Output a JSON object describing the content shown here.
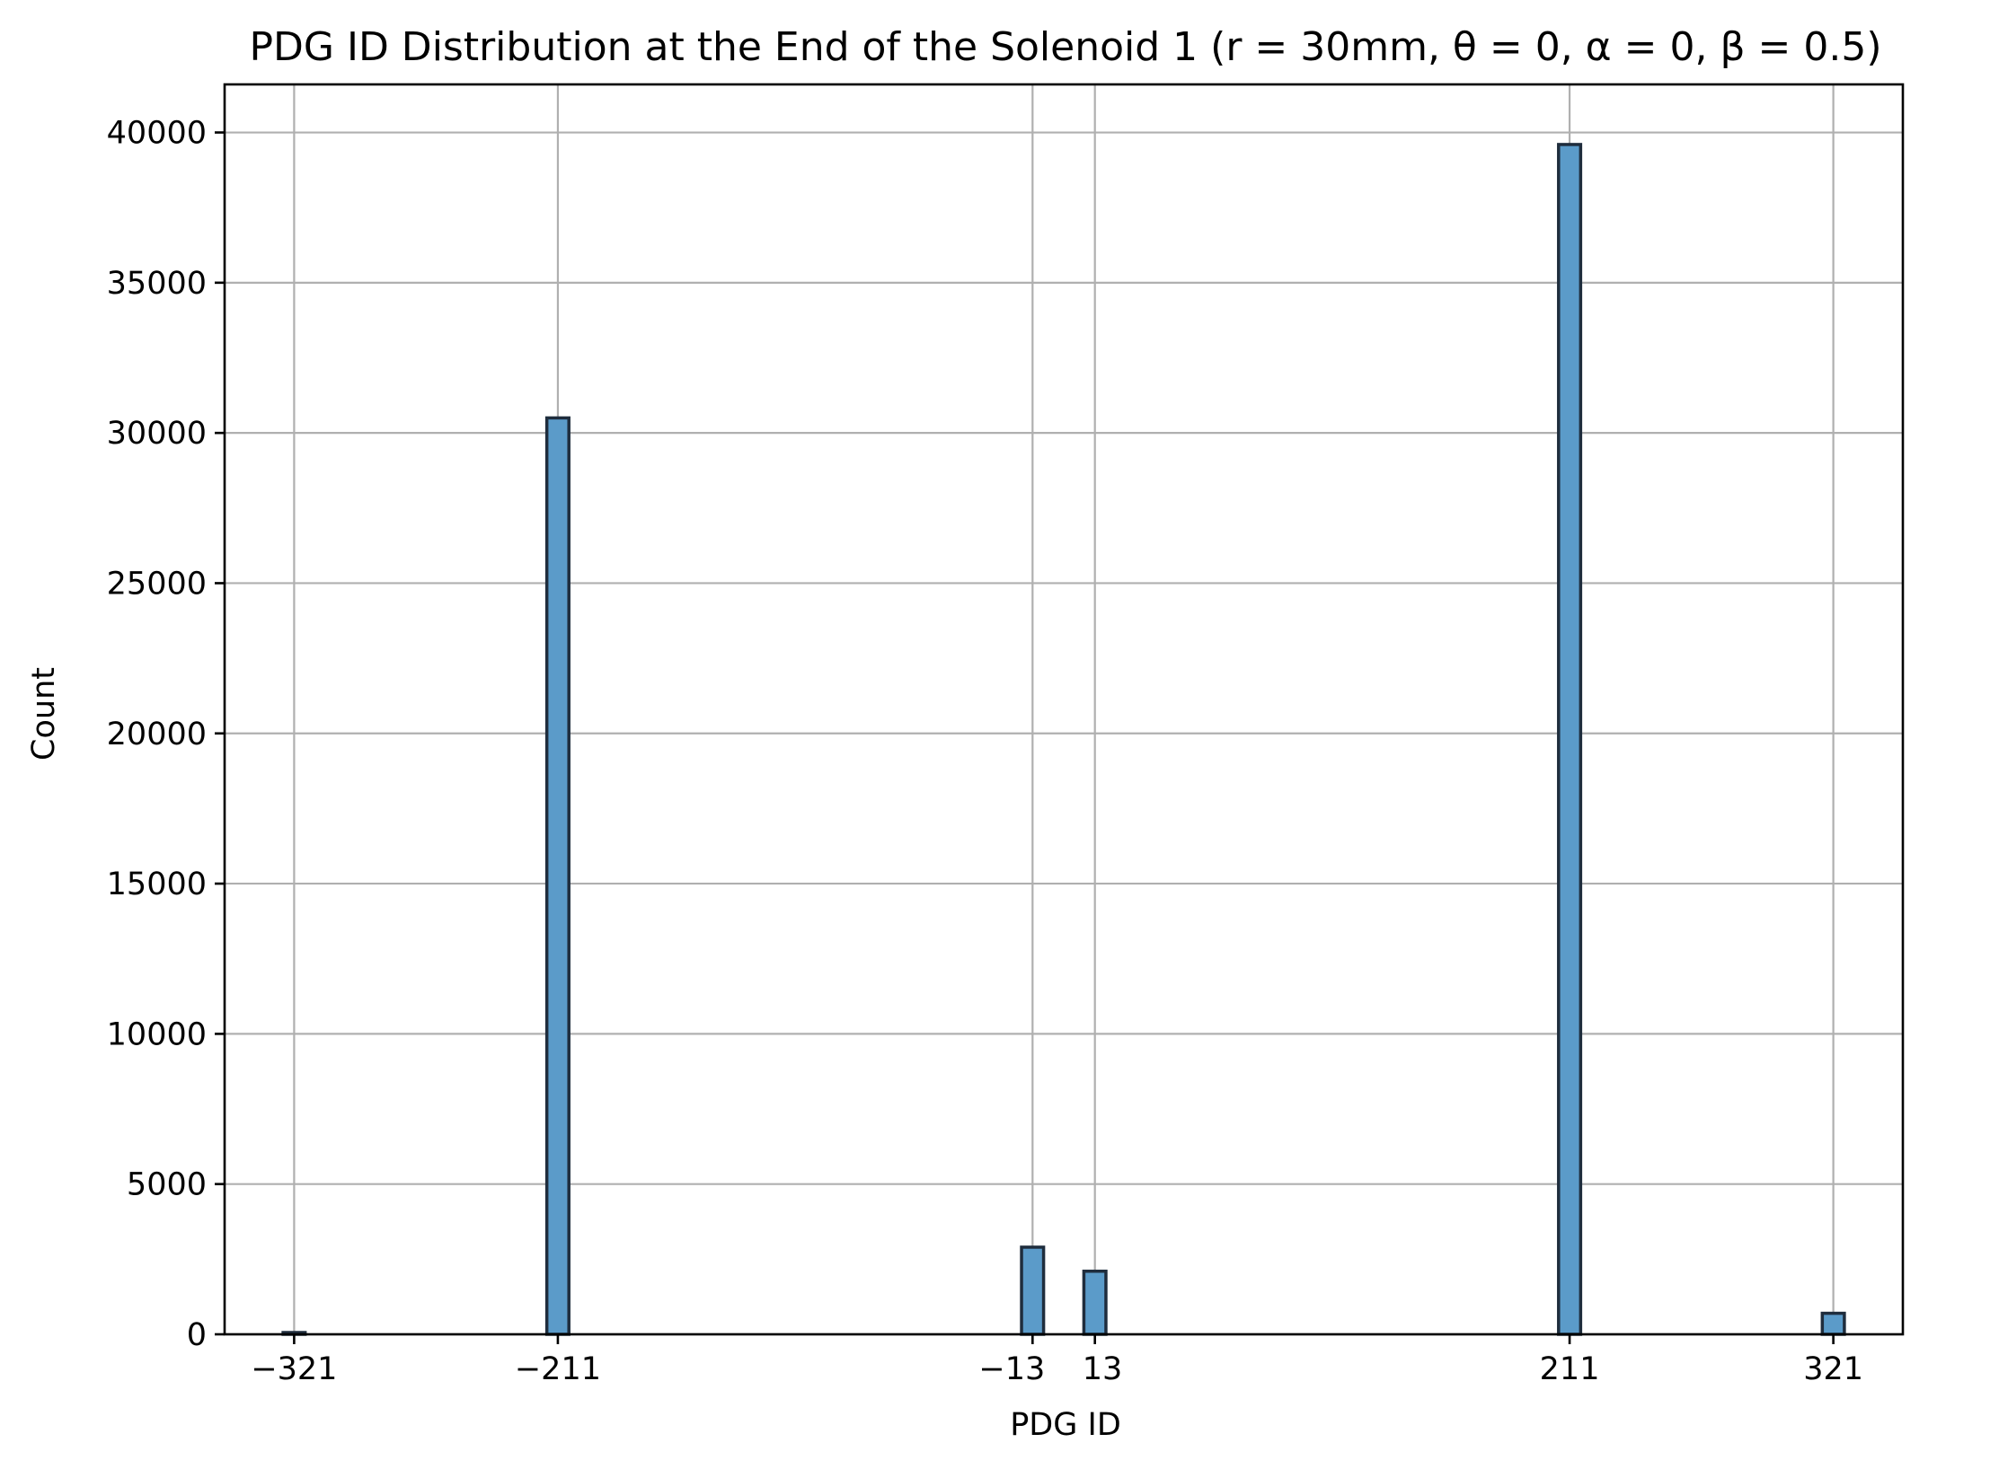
{
  "chart_data": {
    "type": "bar",
    "title": "PDG ID Distribution at the End of the Solenoid 1 (r = 30mm, θ = 0, α = 0, β = 0.5)",
    "xlabel": "PDG ID",
    "ylabel": "Count",
    "xlim": [
      -350,
      350
    ],
    "ylim": [
      0,
      41600
    ],
    "xticks": [
      -321,
      -211,
      -13,
      13,
      211,
      321
    ],
    "xtick_labels": [
      "−321",
      "−211",
      "−13",
      "13",
      "211",
      "321"
    ],
    "yticks": [
      0,
      5000,
      10000,
      15000,
      20000,
      25000,
      30000,
      35000,
      40000
    ],
    "ytick_labels": [
      "0",
      "5000",
      "10000",
      "15000",
      "20000",
      "25000",
      "30000",
      "35000",
      "40000"
    ],
    "grid": true,
    "bin_width": 9.2,
    "bars": [
      {
        "x": -321,
        "count": 60
      },
      {
        "x": -211,
        "count": 30500
      },
      {
        "x": -13,
        "count": 2900
      },
      {
        "x": 13,
        "count": 2100
      },
      {
        "x": 211,
        "count": 39600
      },
      {
        "x": 321,
        "count": 700
      }
    ],
    "colors": {
      "bar_fill": "#5b9bc9",
      "bar_edge": "#1f2d3d",
      "grid": "#b0b0b0"
    }
  }
}
